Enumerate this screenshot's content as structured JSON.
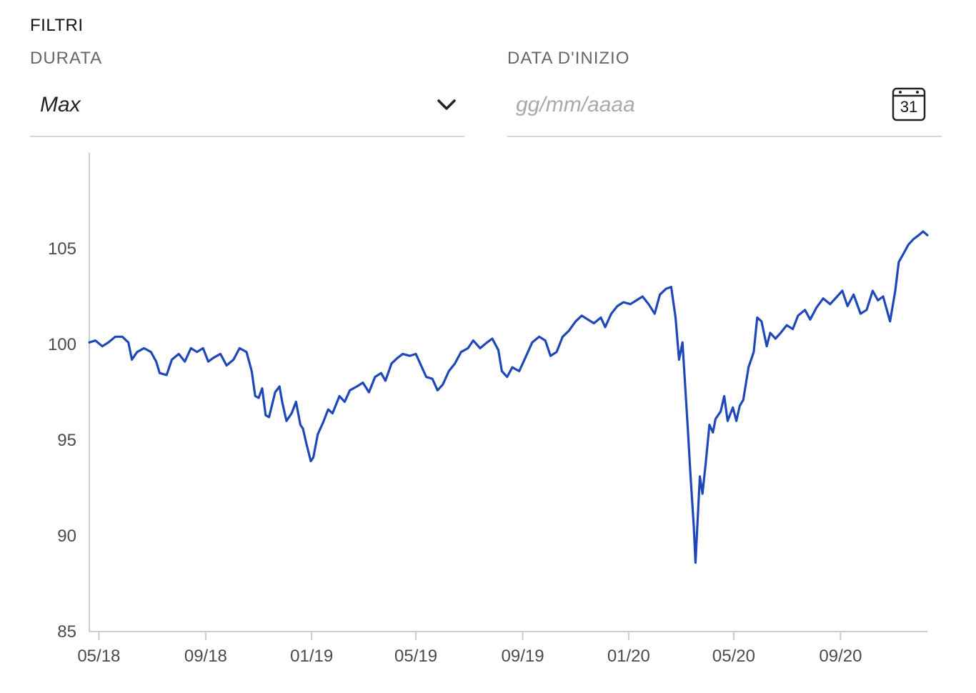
{
  "filters": {
    "title": "FILTRI",
    "duration": {
      "label": "DURATA",
      "value": "Max",
      "icon": "chevron-down-icon"
    },
    "start_date": {
      "label": "DATA D'INIZIO",
      "placeholder": "gg/mm/aaaa",
      "icon": "calendar-icon",
      "calendar_day": "31"
    }
  },
  "colors": {
    "line": "#1e48b8",
    "axis": "#c8ccd8",
    "tick_text": "#4a4a4a",
    "underline": "#d4d6da"
  },
  "chart_data": {
    "type": "line",
    "xlabel": "",
    "ylabel": "",
    "ylim": [
      85,
      110
    ],
    "xlim": [
      "2018-04-20",
      "2020-12-10"
    ],
    "y_ticks": [
      85,
      90,
      95,
      100,
      105
    ],
    "x_ticks": [
      {
        "date": "2018-05-01",
        "label": "05/18"
      },
      {
        "date": "2018-09-01",
        "label": "09/18"
      },
      {
        "date": "2019-01-01",
        "label": "01/19"
      },
      {
        "date": "2019-05-01",
        "label": "05/19"
      },
      {
        "date": "2019-09-01",
        "label": "09/19"
      },
      {
        "date": "2020-01-01",
        "label": "01/20"
      },
      {
        "date": "2020-05-01",
        "label": "05/20"
      },
      {
        "date": "2020-09-01",
        "label": "09/20"
      }
    ],
    "grid": false,
    "series": [
      {
        "points": [
          [
            "2018-04-20",
            100.1
          ],
          [
            "2018-04-27",
            100.2
          ],
          [
            "2018-05-05",
            99.9
          ],
          [
            "2018-05-12",
            100.1
          ],
          [
            "2018-05-20",
            100.4
          ],
          [
            "2018-05-28",
            100.4
          ],
          [
            "2018-06-04",
            100.1
          ],
          [
            "2018-06-08",
            99.2
          ],
          [
            "2018-06-14",
            99.6
          ],
          [
            "2018-06-22",
            99.8
          ],
          [
            "2018-06-30",
            99.6
          ],
          [
            "2018-07-06",
            99.1
          ],
          [
            "2018-07-10",
            98.5
          ],
          [
            "2018-07-18",
            98.4
          ],
          [
            "2018-07-24",
            99.2
          ],
          [
            "2018-08-01",
            99.5
          ],
          [
            "2018-08-08",
            99.1
          ],
          [
            "2018-08-15",
            99.8
          ],
          [
            "2018-08-22",
            99.6
          ],
          [
            "2018-08-29",
            99.8
          ],
          [
            "2018-09-04",
            99.1
          ],
          [
            "2018-09-10",
            99.3
          ],
          [
            "2018-09-18",
            99.5
          ],
          [
            "2018-09-25",
            98.9
          ],
          [
            "2018-10-03",
            99.2
          ],
          [
            "2018-10-10",
            99.8
          ],
          [
            "2018-10-18",
            99.6
          ],
          [
            "2018-10-24",
            98.6
          ],
          [
            "2018-10-28",
            97.3
          ],
          [
            "2018-11-01",
            97.2
          ],
          [
            "2018-11-05",
            97.7
          ],
          [
            "2018-11-09",
            96.3
          ],
          [
            "2018-11-13",
            96.2
          ],
          [
            "2018-11-20",
            97.5
          ],
          [
            "2018-11-25",
            97.8
          ],
          [
            "2018-11-28",
            97.0
          ],
          [
            "2018-12-03",
            96.0
          ],
          [
            "2018-12-09",
            96.4
          ],
          [
            "2018-12-14",
            97.0
          ],
          [
            "2018-12-19",
            95.8
          ],
          [
            "2018-12-22",
            95.6
          ],
          [
            "2018-12-26",
            94.8
          ],
          [
            "2018-12-31",
            93.9
          ],
          [
            "2019-01-03",
            94.1
          ],
          [
            "2019-01-08",
            95.3
          ],
          [
            "2019-01-14",
            95.9
          ],
          [
            "2019-01-20",
            96.6
          ],
          [
            "2019-01-25",
            96.4
          ],
          [
            "2019-02-02",
            97.3
          ],
          [
            "2019-02-08",
            97.0
          ],
          [
            "2019-02-14",
            97.6
          ],
          [
            "2019-02-22",
            97.8
          ],
          [
            "2019-03-01",
            98.0
          ],
          [
            "2019-03-08",
            97.5
          ],
          [
            "2019-03-15",
            98.3
          ],
          [
            "2019-03-22",
            98.5
          ],
          [
            "2019-03-27",
            98.1
          ],
          [
            "2019-04-03",
            99.0
          ],
          [
            "2019-04-10",
            99.3
          ],
          [
            "2019-04-16",
            99.5
          ],
          [
            "2019-04-24",
            99.4
          ],
          [
            "2019-05-01",
            99.5
          ],
          [
            "2019-05-06",
            99.0
          ],
          [
            "2019-05-13",
            98.3
          ],
          [
            "2019-05-20",
            98.2
          ],
          [
            "2019-05-26",
            97.6
          ],
          [
            "2019-06-01",
            97.9
          ],
          [
            "2019-06-08",
            98.6
          ],
          [
            "2019-06-15",
            99.0
          ],
          [
            "2019-06-22",
            99.6
          ],
          [
            "2019-06-30",
            99.8
          ],
          [
            "2019-07-06",
            100.2
          ],
          [
            "2019-07-14",
            99.8
          ],
          [
            "2019-07-22",
            100.1
          ],
          [
            "2019-07-28",
            100.3
          ],
          [
            "2019-08-04",
            99.7
          ],
          [
            "2019-08-08",
            98.6
          ],
          [
            "2019-08-14",
            98.3
          ],
          [
            "2019-08-20",
            98.8
          ],
          [
            "2019-08-28",
            98.6
          ],
          [
            "2019-09-04",
            99.3
          ],
          [
            "2019-09-12",
            100.1
          ],
          [
            "2019-09-20",
            100.4
          ],
          [
            "2019-09-27",
            100.2
          ],
          [
            "2019-10-03",
            99.4
          ],
          [
            "2019-10-10",
            99.6
          ],
          [
            "2019-10-17",
            100.4
          ],
          [
            "2019-10-24",
            100.7
          ],
          [
            "2019-11-01",
            101.2
          ],
          [
            "2019-11-08",
            101.5
          ],
          [
            "2019-11-15",
            101.3
          ],
          [
            "2019-11-22",
            101.1
          ],
          [
            "2019-11-30",
            101.4
          ],
          [
            "2019-12-05",
            100.9
          ],
          [
            "2019-12-12",
            101.6
          ],
          [
            "2019-12-19",
            102.0
          ],
          [
            "2019-12-26",
            102.2
          ],
          [
            "2020-01-03",
            102.1
          ],
          [
            "2020-01-10",
            102.3
          ],
          [
            "2020-01-17",
            102.5
          ],
          [
            "2020-01-24",
            102.1
          ],
          [
            "2020-01-31",
            101.6
          ],
          [
            "2020-02-06",
            102.6
          ],
          [
            "2020-02-13",
            102.9
          ],
          [
            "2020-02-19",
            103.0
          ],
          [
            "2020-02-24",
            101.4
          ],
          [
            "2020-02-28",
            99.2
          ],
          [
            "2020-03-03",
            100.1
          ],
          [
            "2020-03-09",
            95.7
          ],
          [
            "2020-03-12",
            93.3
          ],
          [
            "2020-03-16",
            90.5
          ],
          [
            "2020-03-18",
            88.6
          ],
          [
            "2020-03-23",
            93.1
          ],
          [
            "2020-03-26",
            92.2
          ],
          [
            "2020-03-30",
            93.9
          ],
          [
            "2020-04-03",
            95.8
          ],
          [
            "2020-04-07",
            95.4
          ],
          [
            "2020-04-10",
            96.1
          ],
          [
            "2020-04-16",
            96.5
          ],
          [
            "2020-04-20",
            97.3
          ],
          [
            "2020-04-24",
            96.0
          ],
          [
            "2020-04-30",
            96.7
          ],
          [
            "2020-05-04",
            96.0
          ],
          [
            "2020-05-08",
            96.8
          ],
          [
            "2020-05-12",
            97.1
          ],
          [
            "2020-05-18",
            98.8
          ],
          [
            "2020-05-24",
            99.6
          ],
          [
            "2020-05-28",
            101.4
          ],
          [
            "2020-06-02",
            101.2
          ],
          [
            "2020-06-08",
            99.9
          ],
          [
            "2020-06-12",
            100.6
          ],
          [
            "2020-06-18",
            100.3
          ],
          [
            "2020-06-24",
            100.6
          ],
          [
            "2020-07-01",
            101.0
          ],
          [
            "2020-07-08",
            100.8
          ],
          [
            "2020-07-14",
            101.5
          ],
          [
            "2020-07-22",
            101.8
          ],
          [
            "2020-07-28",
            101.3
          ],
          [
            "2020-08-04",
            101.9
          ],
          [
            "2020-08-12",
            102.4
          ],
          [
            "2020-08-20",
            102.1
          ],
          [
            "2020-08-28",
            102.5
          ],
          [
            "2020-09-03",
            102.8
          ],
          [
            "2020-09-09",
            102.0
          ],
          [
            "2020-09-16",
            102.6
          ],
          [
            "2020-09-24",
            101.6
          ],
          [
            "2020-10-01",
            101.8
          ],
          [
            "2020-10-08",
            102.8
          ],
          [
            "2020-10-14",
            102.3
          ],
          [
            "2020-10-20",
            102.5
          ],
          [
            "2020-10-28",
            101.2
          ],
          [
            "2020-11-03",
            102.8
          ],
          [
            "2020-11-07",
            104.3
          ],
          [
            "2020-11-12",
            104.7
          ],
          [
            "2020-11-18",
            105.2
          ],
          [
            "2020-11-24",
            105.5
          ],
          [
            "2020-11-30",
            105.7
          ],
          [
            "2020-12-05",
            105.9
          ],
          [
            "2020-12-10",
            105.7
          ]
        ]
      }
    ]
  }
}
